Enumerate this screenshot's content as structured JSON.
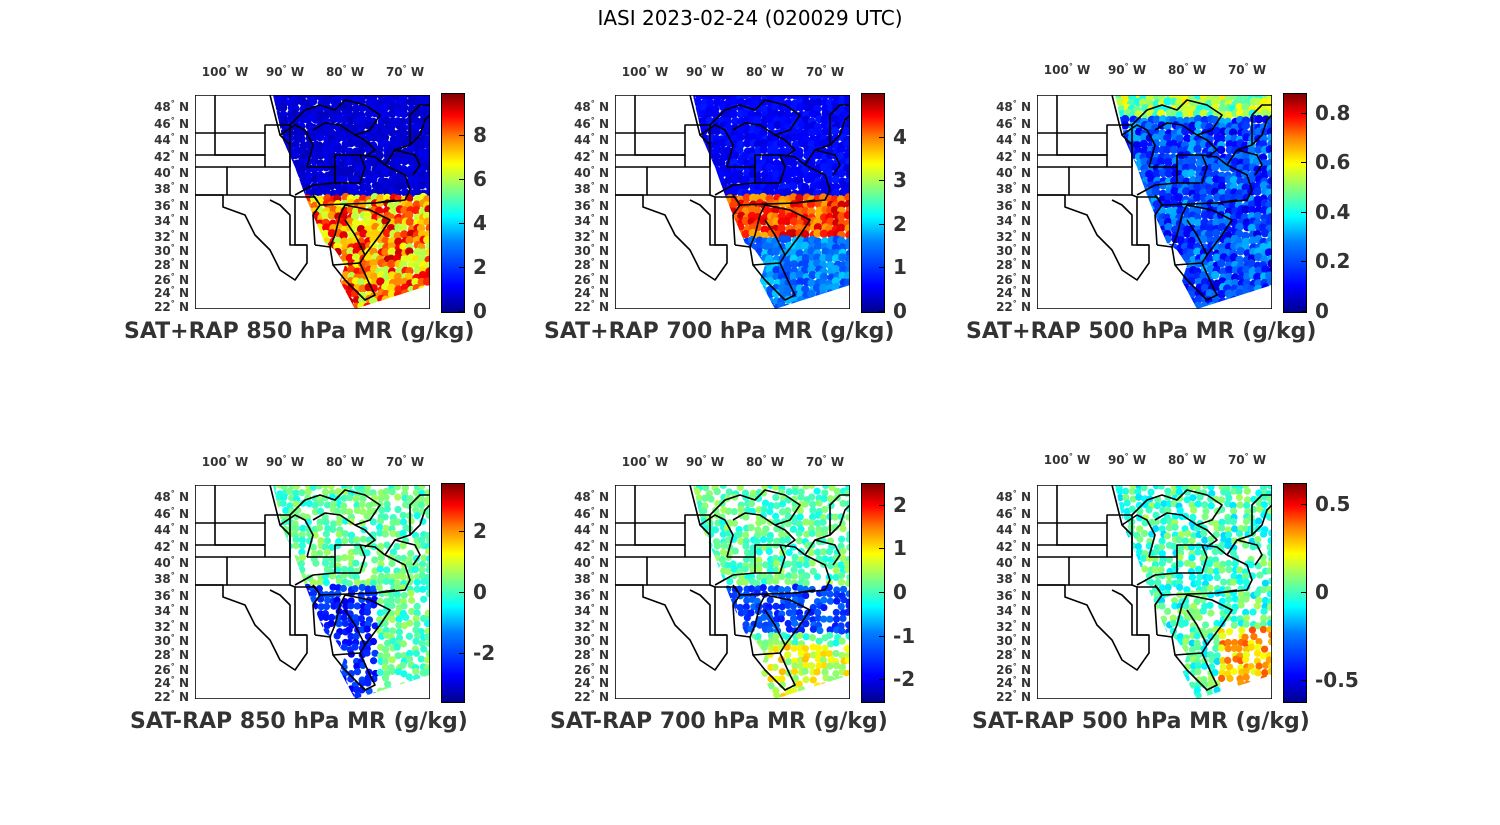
{
  "figure_title": "IASI 2023-02-24 (020029 UTC)",
  "lon_labels": [
    "100",
    "90",
    "80",
    "70"
  ],
  "lon_suffix": "W",
  "lat_labels": [
    "48",
    "46",
    "44",
    "42",
    "40",
    "38",
    "36",
    "34",
    "32",
    "30",
    "28",
    "26",
    "24",
    "22"
  ],
  "lat_suffix": "N",
  "panels": [
    {
      "title": "SAT+RAP 850 hPa MR (g/kg)",
      "cbar_ticks": [
        "8",
        "6",
        "4",
        "2",
        "0"
      ],
      "cbar_values": [
        8,
        6,
        4,
        2,
        0
      ],
      "cbar_range": [
        0,
        9.9
      ]
    },
    {
      "title": "SAT+RAP 700 hPa MR (g/kg)",
      "cbar_ticks": [
        "4",
        "3",
        "2",
        "1",
        "0"
      ],
      "cbar_values": [
        4,
        3,
        2,
        1,
        0
      ],
      "cbar_range": [
        0,
        5
      ]
    },
    {
      "title": "SAT+RAP 500 hPa MR (g/kg)",
      "cbar_ticks": [
        "0.8",
        "0.6",
        "0.4",
        "0.2",
        "0"
      ],
      "cbar_values": [
        0.8,
        0.6,
        0.4,
        0.2,
        0
      ],
      "cbar_range": [
        0,
        0.88
      ]
    },
    {
      "title": "SAT-RAP 850 hPa MR (g/kg)",
      "cbar_ticks": [
        "2",
        "0",
        "-2"
      ],
      "cbar_values": [
        2,
        0,
        -2
      ],
      "cbar_range": [
        -3.6,
        3.6
      ]
    },
    {
      "title": "SAT-RAP 700 hPa MR (g/kg)",
      "cbar_ticks": [
        "2",
        "1",
        "0",
        "-1",
        "-2"
      ],
      "cbar_values": [
        2,
        1,
        0,
        -1,
        -2
      ],
      "cbar_range": [
        -2.5,
        2.5
      ]
    },
    {
      "title": "SAT-RAP 500 hPa MR (g/kg)",
      "cbar_ticks": [
        "0.5",
        "0",
        "-0.5"
      ],
      "cbar_values": [
        0.5,
        0,
        -0.5
      ],
      "cbar_range": [
        -0.62,
        0.62
      ]
    }
  ],
  "colors": {
    "jet_low": "#00008f",
    "jet_mid": "#80ff80",
    "jet_high": "#800000",
    "border": "#000000"
  }
}
